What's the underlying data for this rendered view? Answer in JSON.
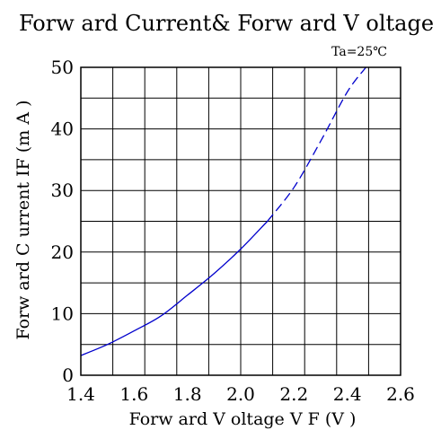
{
  "chart_data": {
    "type": "line",
    "title": "Forw ard Current& Forw ard V oltage",
    "condition": "Ta=25℃",
    "xlabel": "Forw ard V oltage V F (V )",
    "ylabel": "Forw ard C urrent IF (m A )",
    "xlim": [
      1.4,
      2.6
    ],
    "ylim": [
      0,
      50
    ],
    "x_ticks": [
      "1.4",
      "1.6",
      "1.8",
      "2.0",
      "2.2",
      "2.4",
      "2.6"
    ],
    "y_ticks": [
      "0",
      "10",
      "20",
      "30",
      "40",
      "50"
    ],
    "grid": true,
    "x_minor_divisions": 10,
    "y_minor_divisions": 10,
    "series": [
      {
        "line_style": "solid",
        "color": "#0000cc",
        "x": [
          1.4,
          1.5,
          1.6,
          1.7,
          1.8,
          1.9,
          2.0,
          2.1
        ],
        "y": [
          3.2,
          5.0,
          7.2,
          9.6,
          13.0,
          16.5,
          20.5,
          25.0
        ]
      },
      {
        "line_style": "dashed",
        "color": "#0000cc",
        "x": [
          2.1,
          2.2,
          2.3,
          2.4,
          2.47
        ],
        "y": [
          25.0,
          30.5,
          38.0,
          46.0,
          50.0
        ]
      }
    ]
  }
}
